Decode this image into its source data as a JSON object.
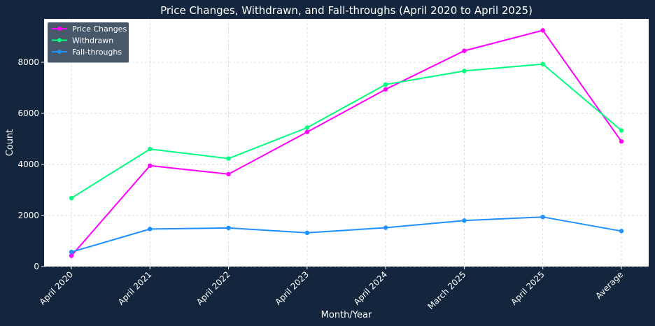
{
  "chart_data": {
    "type": "line",
    "title": "Price Changes, Withdrawn, and Fall-throughs (April 2020 to April 2025)",
    "xlabel": "Month/Year",
    "ylabel": "Count",
    "categories": [
      "April 2020",
      "April 2021",
      "April 2022",
      "April 2023",
      "April 2024",
      "March 2025",
      "April 2025",
      "Average"
    ],
    "ylim": [
      0,
      9700
    ],
    "yticks": [
      0,
      2000,
      4000,
      6000,
      8000
    ],
    "grid": true,
    "legend_position": "top-left",
    "series": [
      {
        "name": "Price Changes",
        "color": "#ff00ff",
        "values": [
          420,
          3950,
          3620,
          5270,
          6940,
          8450,
          9250,
          4900
        ]
      },
      {
        "name": "Withdrawn",
        "color": "#00ff7f",
        "values": [
          2680,
          4600,
          4230,
          5440,
          7130,
          7660,
          7930,
          5330
        ]
      },
      {
        "name": "Fall-throughs",
        "color": "#1e90ff",
        "values": [
          570,
          1470,
          1510,
          1320,
          1520,
          1800,
          1940,
          1390
        ]
      }
    ]
  },
  "colors": {
    "page_background": "#13263d",
    "plot_background": "#ffffff",
    "legend_background": "#3d4f63",
    "grid": "#cccccc",
    "text": "#ffffff"
  }
}
